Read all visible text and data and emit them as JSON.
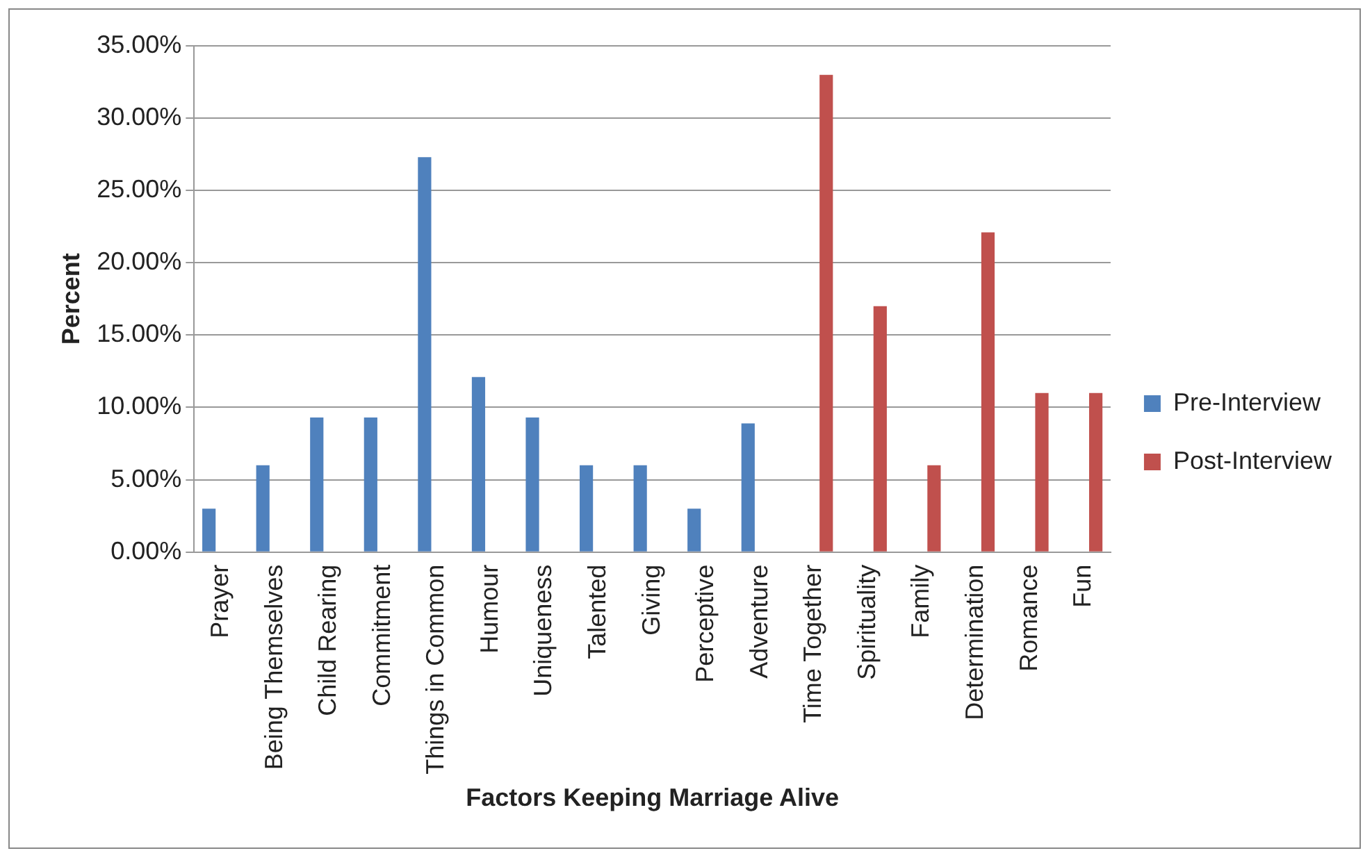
{
  "chart_data": {
    "type": "bar",
    "xlabel": "Factors Keeping Marriage Alive",
    "ylabel": "Percent",
    "categories": [
      "Prayer",
      "Being Themselves",
      "Child Rearing",
      "Commitment",
      "Things in Common",
      "Humour",
      "Uniqueness",
      "Talented",
      "Giving",
      "Perceptive",
      "Adventure",
      "Time Together",
      "Spirituality",
      "Family",
      "Determination",
      "Romance",
      "Fun"
    ],
    "series": [
      {
        "name": "Pre-Interview",
        "color": "#4f81bd",
        "values": [
          3.0,
          6.0,
          9.3,
          9.3,
          27.3,
          12.1,
          9.3,
          6.0,
          6.0,
          3.0,
          8.9,
          null,
          null,
          null,
          null,
          null,
          null
        ]
      },
      {
        "name": "Post-Interview",
        "color": "#c0504d",
        "values": [
          null,
          null,
          null,
          null,
          null,
          null,
          null,
          null,
          null,
          null,
          null,
          33.0,
          17.0,
          6.0,
          22.1,
          11.0,
          11.0
        ]
      }
    ],
    "ylim": [
      0,
      35
    ],
    "yticks": [
      {
        "value": 0,
        "label": "0.00%"
      },
      {
        "value": 5,
        "label": "5.00%"
      },
      {
        "value": 10,
        "label": "10.00%"
      },
      {
        "value": 15,
        "label": "15.00%"
      },
      {
        "value": 20,
        "label": "20.00%"
      },
      {
        "value": 25,
        "label": "25.00%"
      },
      {
        "value": 30,
        "label": "30.00%"
      },
      {
        "value": 35,
        "label": "35.00%"
      }
    ],
    "grid": "y",
    "legend": "right"
  }
}
